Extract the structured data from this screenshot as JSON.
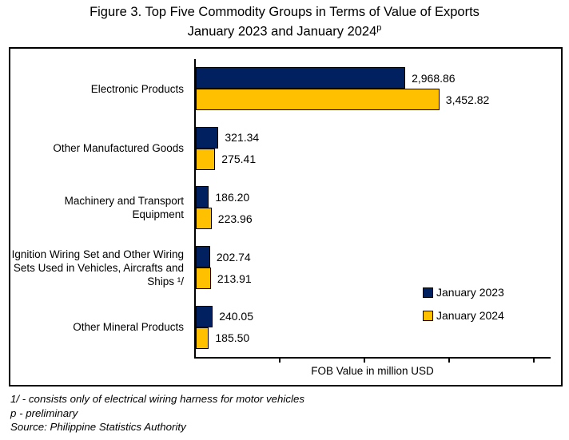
{
  "title": {
    "line1": "Figure 3. Top Five Commodity Groups in Terms of Value of Exports",
    "line2": "January 2023 and January 2024",
    "superscript": "p"
  },
  "chart_data": {
    "type": "bar",
    "orientation": "horizontal",
    "title": "Figure 3. Top Five Commodity Groups in Terms of Value of Exports January 2023 and January 2024p",
    "xlabel": "FOB Value in million USD",
    "xlim": [
      0,
      4800
    ],
    "xticks": [
      1200,
      2400,
      3600,
      4800
    ],
    "xtick_labels_visible": false,
    "grid": false,
    "legend_position": "inside-right",
    "categories": [
      "Electronic Products",
      "Other Manufactured Goods",
      "Machinery and Transport Equipment",
      "Ignition Wiring Set and Other Wiring Sets Used in Vehicles, Aircrafts and Ships ¹/",
      "Other Mineral Products"
    ],
    "series": [
      {
        "name": "January 2023",
        "color": "#012060",
        "values": [
          2968.86,
          321.34,
          186.2,
          202.74,
          240.05
        ],
        "labels": [
          "2,968.86",
          "321.34",
          "186.20",
          "202.74",
          "240.05"
        ]
      },
      {
        "name": "January 2024",
        "color": "#FFC000",
        "values": [
          3452.82,
          275.41,
          223.96,
          213.91,
          185.5
        ],
        "labels": [
          "3,452.82",
          "275.41",
          "223.96",
          "213.91",
          "185.50"
        ]
      }
    ]
  },
  "footnotes": [
    "1/ - consists only of electrical wiring harness for motor vehicles",
    "p - preliminary",
    "Source: Philippine Statistics Authority"
  ]
}
